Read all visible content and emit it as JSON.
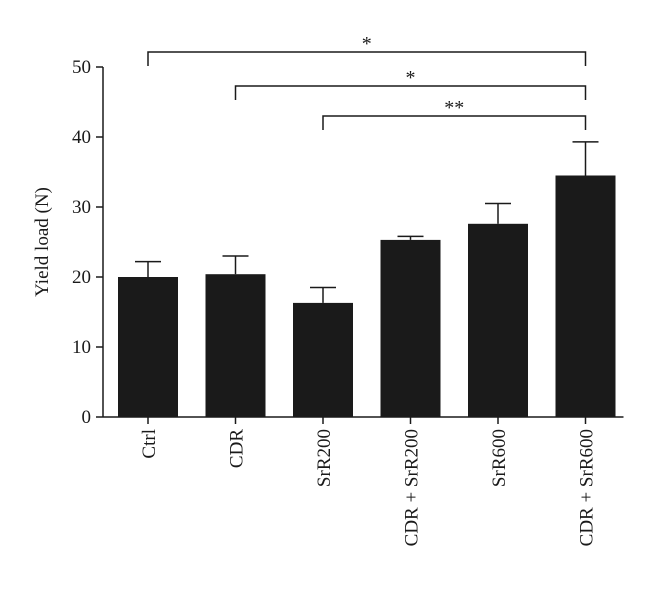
{
  "chart_data": {
    "type": "bar",
    "title": "",
    "xlabel": "",
    "ylabel": "Yield load (N)",
    "ylim": [
      0,
      50
    ],
    "yticks": [
      0,
      10,
      20,
      30,
      40,
      50
    ],
    "categories": [
      "Ctrl",
      "CDR",
      "SrR200",
      "CDR + SrR200",
      "SrR600",
      "CDR + SrR600"
    ],
    "values": [
      20.0,
      20.4,
      16.3,
      25.3,
      27.6,
      34.5
    ],
    "errors": [
      2.2,
      2.6,
      2.2,
      0.5,
      2.9,
      4.8
    ],
    "bar_color": "#1a1a1a",
    "grid": false,
    "significance": [
      {
        "from": "Ctrl",
        "to": "CDR + SrR600",
        "label": "*"
      },
      {
        "from": "CDR",
        "to": "CDR + SrR600",
        "label": "*"
      },
      {
        "from": "SrR200",
        "to": "CDR + SrR600",
        "label": "**"
      }
    ]
  }
}
